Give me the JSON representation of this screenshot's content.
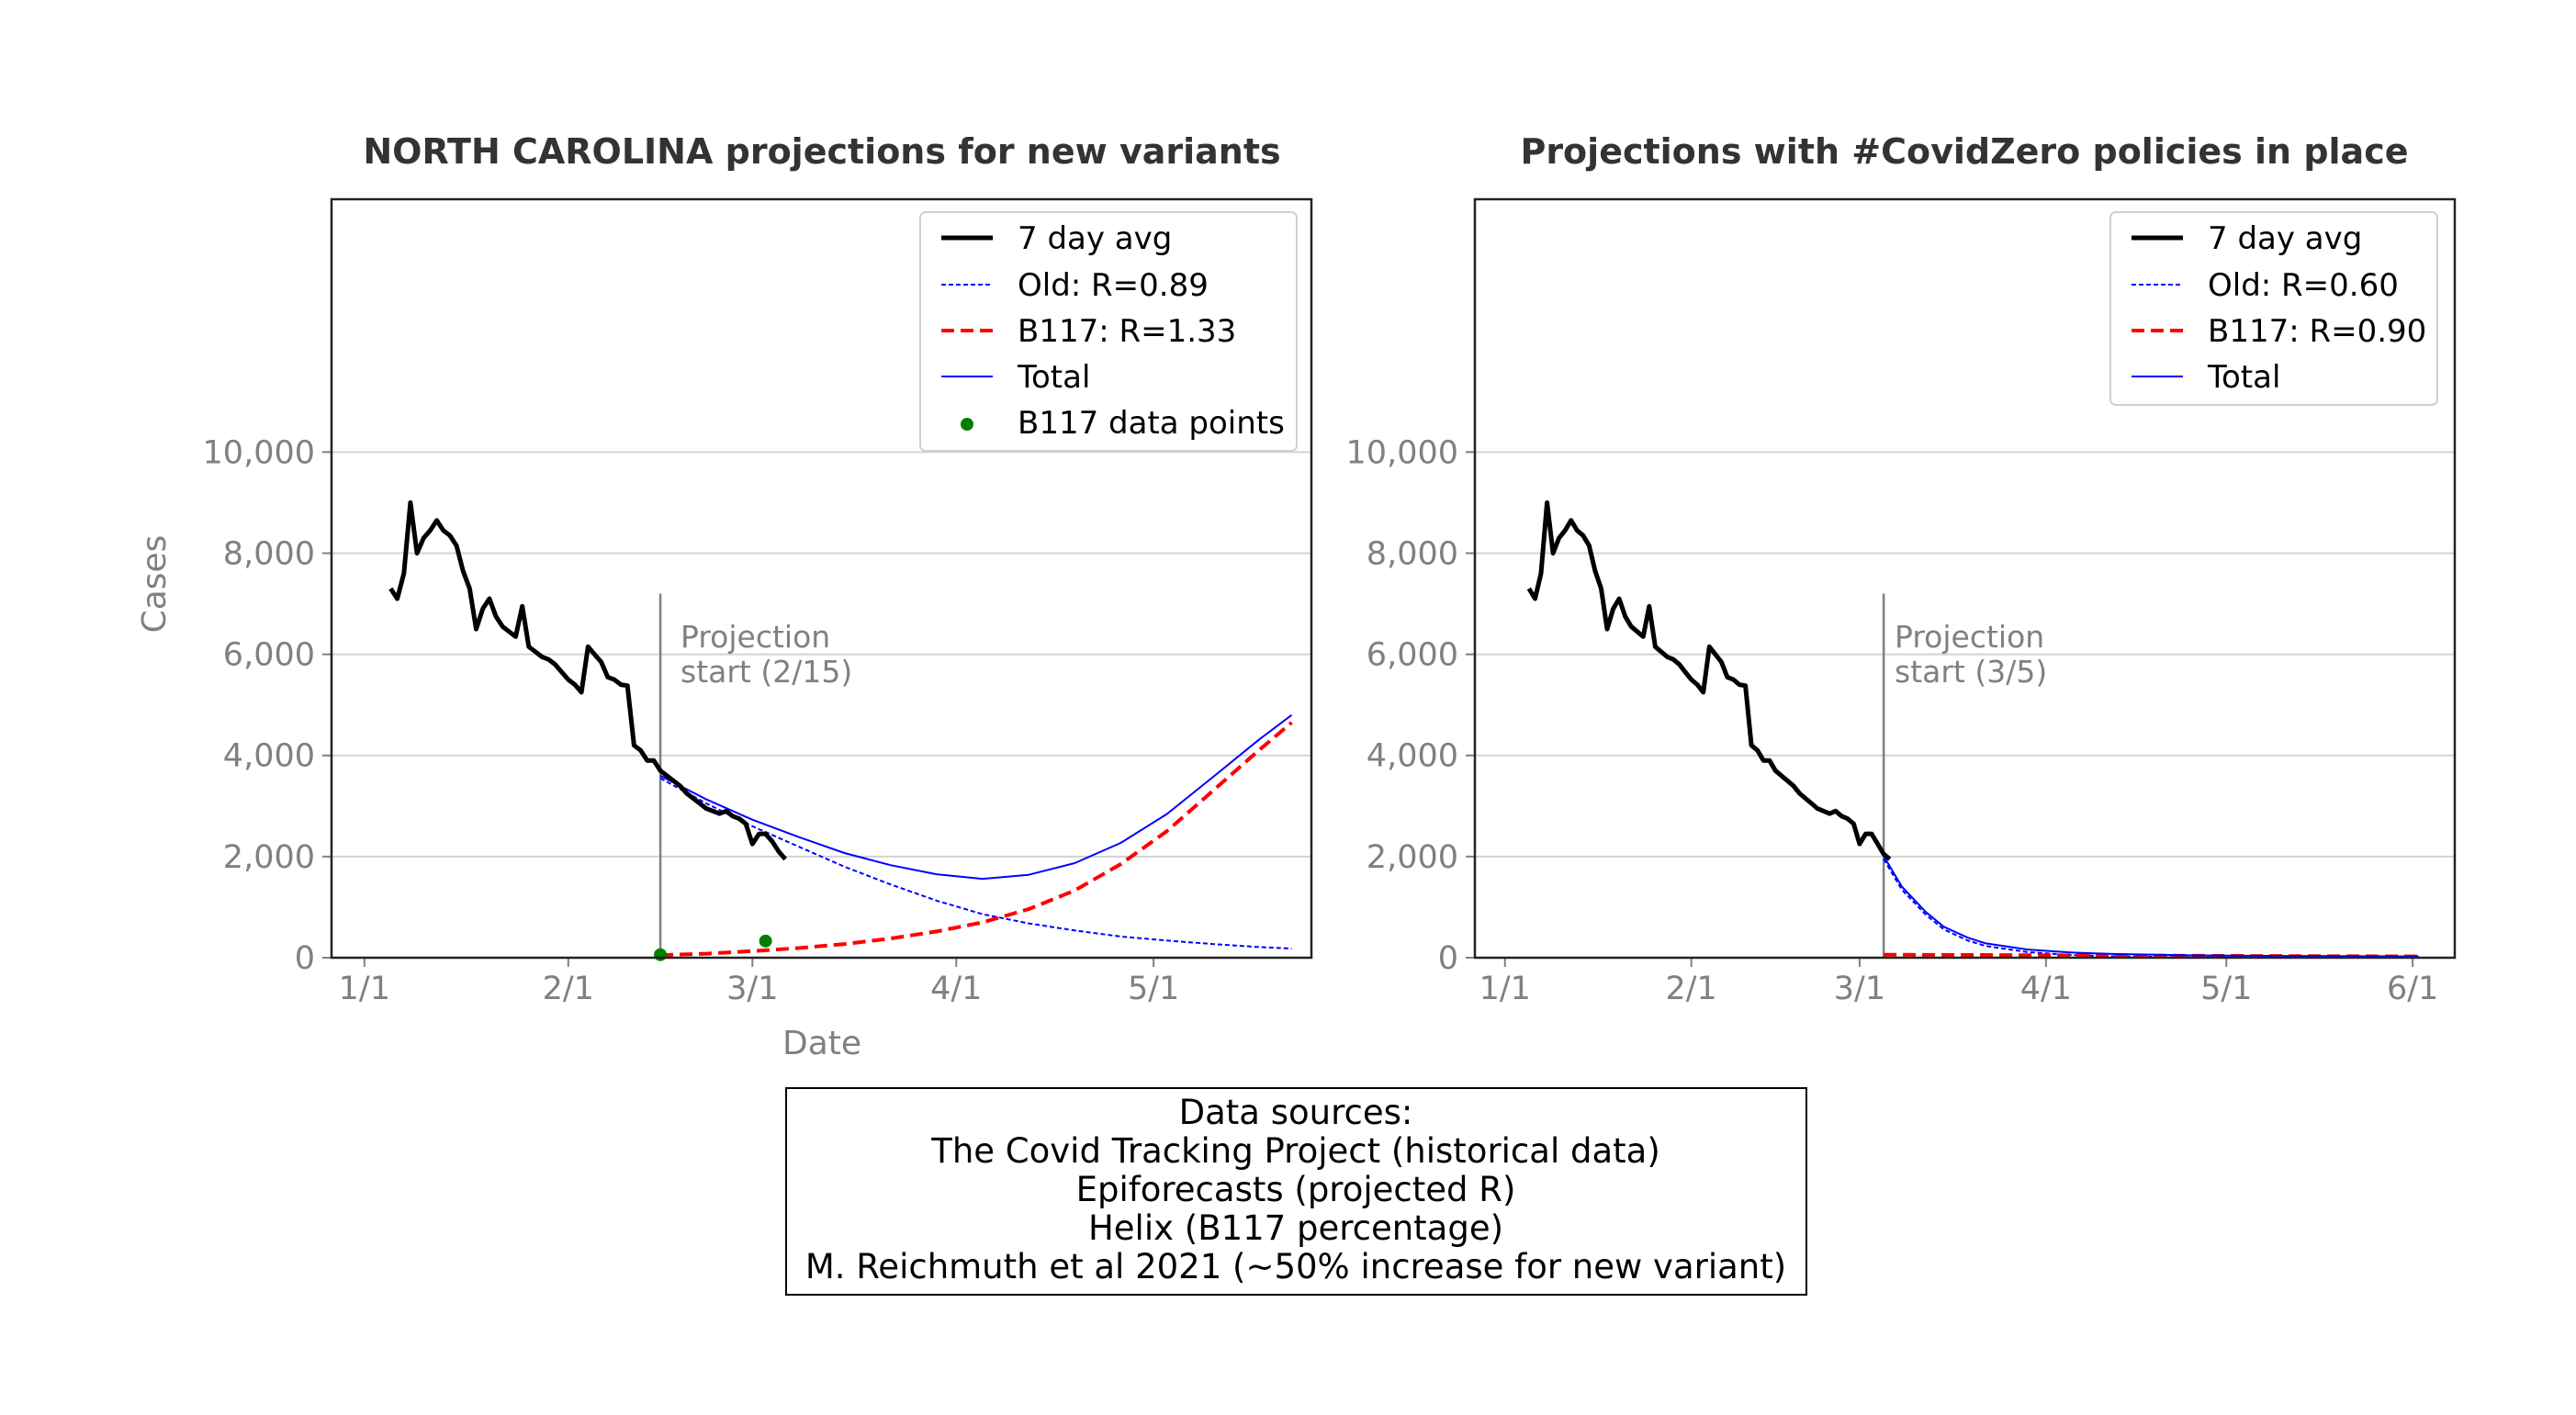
{
  "chart_data": [
    {
      "type": "line",
      "title": "NORTH CAROLINA projections for new variants",
      "xlabel": "Date",
      "ylabel": "Cases",
      "x_ticks": [
        "1/1",
        "2/1",
        "3/1",
        "4/1",
        "5/1"
      ],
      "y_ticks": [
        "0",
        "2,000",
        "4,000",
        "6,000",
        "8,000",
        "10,000"
      ],
      "xlim": [
        "2020-12-27",
        "2021-05-25"
      ],
      "ylim": [
        0,
        15000
      ],
      "grid": "horizontal",
      "legend_position": "top-right",
      "annotation": {
        "lines": [
          "Projection",
          "start (2/15)"
        ],
        "x": "2021-02-15"
      },
      "series": [
        {
          "name": "7 day avg",
          "style": "thick-solid",
          "color": "#000000",
          "points": [
            [
              "2021-01-05",
              7300
            ],
            [
              "2021-01-06",
              7100
            ],
            [
              "2021-01-07",
              7600
            ],
            [
              "2021-01-08",
              9000
            ],
            [
              "2021-01-09",
              8000
            ],
            [
              "2021-01-10",
              8300
            ],
            [
              "2021-01-11",
              8450
            ],
            [
              "2021-01-12",
              8650
            ],
            [
              "2021-01-13",
              8450
            ],
            [
              "2021-01-14",
              8350
            ],
            [
              "2021-01-15",
              8150
            ],
            [
              "2021-01-16",
              7650
            ],
            [
              "2021-01-17",
              7300
            ],
            [
              "2021-01-18",
              6500
            ],
            [
              "2021-01-19",
              6900
            ],
            [
              "2021-01-20",
              7100
            ],
            [
              "2021-01-21",
              6750
            ],
            [
              "2021-01-22",
              6550
            ],
            [
              "2021-01-23",
              6450
            ],
            [
              "2021-01-24",
              6350
            ],
            [
              "2021-01-25",
              6950
            ],
            [
              "2021-01-26",
              6150
            ],
            [
              "2021-01-27",
              6050
            ],
            [
              "2021-01-28",
              5950
            ],
            [
              "2021-01-29",
              5900
            ],
            [
              "2021-01-30",
              5800
            ],
            [
              "2021-01-31",
              5650
            ],
            [
              "2021-02-01",
              5500
            ],
            [
              "2021-02-02",
              5400
            ],
            [
              "2021-02-03",
              5250
            ],
            [
              "2021-02-04",
              6150
            ],
            [
              "2021-02-05",
              6000
            ],
            [
              "2021-02-06",
              5850
            ],
            [
              "2021-02-07",
              5550
            ],
            [
              "2021-02-08",
              5500
            ],
            [
              "2021-02-09",
              5400
            ],
            [
              "2021-02-10",
              5380
            ],
            [
              "2021-02-11",
              4200
            ],
            [
              "2021-02-12",
              4100
            ],
            [
              "2021-02-13",
              3900
            ],
            [
              "2021-02-14",
              3900
            ],
            [
              "2021-02-15",
              3700
            ],
            [
              "2021-02-16",
              3600
            ],
            [
              "2021-02-17",
              3500
            ],
            [
              "2021-02-18",
              3400
            ],
            [
              "2021-02-19",
              3250
            ],
            [
              "2021-02-20",
              3150
            ],
            [
              "2021-02-21",
              3050
            ],
            [
              "2021-02-22",
              2950
            ],
            [
              "2021-02-23",
              2900
            ],
            [
              "2021-02-24",
              2850
            ],
            [
              "2021-02-25",
              2900
            ],
            [
              "2021-02-26",
              2800
            ],
            [
              "2021-02-27",
              2750
            ],
            [
              "2021-02-28",
              2650
            ],
            [
              "2021-03-01",
              2250
            ],
            [
              "2021-03-02",
              2450
            ],
            [
              "2021-03-03",
              2450
            ],
            [
              "2021-03-04",
              2300
            ],
            [
              "2021-03-05",
              2100
            ],
            [
              "2021-03-06",
              1950
            ]
          ]
        },
        {
          "name": "Old: R=0.89",
          "style": "thin-dashed",
          "color": "#0000ff",
          "points": [
            [
              "2021-02-15",
              3550
            ],
            [
              "2021-02-22",
              3050
            ],
            [
              "2021-03-01",
              2600
            ],
            [
              "2021-03-08",
              2200
            ],
            [
              "2021-03-15",
              1800
            ],
            [
              "2021-03-22",
              1450
            ],
            [
              "2021-03-29",
              1130
            ],
            [
              "2021-04-05",
              860
            ],
            [
              "2021-04-12",
              680
            ],
            [
              "2021-04-19",
              540
            ],
            [
              "2021-04-26",
              420
            ],
            [
              "2021-05-03",
              340
            ],
            [
              "2021-05-10",
              270
            ],
            [
              "2021-05-17",
              210
            ],
            [
              "2021-05-22",
              180
            ]
          ]
        },
        {
          "name": "B117: R=1.33",
          "style": "thick-dashed",
          "color": "#ff0000",
          "points": [
            [
              "2021-02-15",
              50
            ],
            [
              "2021-02-22",
              80
            ],
            [
              "2021-03-01",
              130
            ],
            [
              "2021-03-08",
              190
            ],
            [
              "2021-03-15",
              270
            ],
            [
              "2021-03-22",
              380
            ],
            [
              "2021-03-29",
              520
            ],
            [
              "2021-04-05",
              700
            ],
            [
              "2021-04-12",
              960
            ],
            [
              "2021-04-19",
              1330
            ],
            [
              "2021-04-26",
              1850
            ],
            [
              "2021-05-03",
              2500
            ],
            [
              "2021-05-10",
              3300
            ],
            [
              "2021-05-17",
              4100
            ],
            [
              "2021-05-22",
              4650
            ]
          ]
        },
        {
          "name": "Total",
          "style": "thin-solid",
          "color": "#0000ff",
          "points": [
            [
              "2021-02-15",
              3600
            ],
            [
              "2021-02-22",
              3130
            ],
            [
              "2021-03-01",
              2730
            ],
            [
              "2021-03-08",
              2390
            ],
            [
              "2021-03-15",
              2070
            ],
            [
              "2021-03-22",
              1830
            ],
            [
              "2021-03-29",
              1650
            ],
            [
              "2021-04-05",
              1560
            ],
            [
              "2021-04-12",
              1640
            ],
            [
              "2021-04-19",
              1870
            ],
            [
              "2021-04-26",
              2270
            ],
            [
              "2021-05-03",
              2840
            ],
            [
              "2021-05-10",
              3570
            ],
            [
              "2021-05-17",
              4310
            ],
            [
              "2021-05-22",
              4800
            ]
          ]
        },
        {
          "name": "B117 data points",
          "style": "dots",
          "color": "#008000",
          "points": [
            [
              "2021-02-15",
              60
            ],
            [
              "2021-03-03",
              330
            ]
          ]
        }
      ]
    },
    {
      "type": "line",
      "title": "Projections with #CovidZero policies in place",
      "xlabel": "",
      "ylabel": "",
      "x_ticks": [
        "1/1",
        "2/1",
        "3/1",
        "4/1",
        "5/1",
        "6/1"
      ],
      "y_ticks": [
        "0",
        "2,000",
        "4,000",
        "6,000",
        "8,000",
        "10,000"
      ],
      "xlim": [
        "2020-12-27",
        "2021-06-08"
      ],
      "ylim": [
        0,
        15000
      ],
      "grid": "horizontal",
      "legend_position": "top-right",
      "annotation": {
        "lines": [
          "Projection",
          "start (3/5)"
        ],
        "x": "2021-03-05"
      },
      "series": [
        {
          "name": "7 day avg",
          "style": "thick-solid",
          "color": "#000000",
          "points": [
            [
              "2021-01-05",
              7300
            ],
            [
              "2021-01-06",
              7100
            ],
            [
              "2021-01-07",
              7600
            ],
            [
              "2021-01-08",
              9000
            ],
            [
              "2021-01-09",
              8000
            ],
            [
              "2021-01-10",
              8300
            ],
            [
              "2021-01-11",
              8450
            ],
            [
              "2021-01-12",
              8650
            ],
            [
              "2021-01-13",
              8450
            ],
            [
              "2021-01-14",
              8350
            ],
            [
              "2021-01-15",
              8150
            ],
            [
              "2021-01-16",
              7650
            ],
            [
              "2021-01-17",
              7300
            ],
            [
              "2021-01-18",
              6500
            ],
            [
              "2021-01-19",
              6900
            ],
            [
              "2021-01-20",
              7100
            ],
            [
              "2021-01-21",
              6750
            ],
            [
              "2021-01-22",
              6550
            ],
            [
              "2021-01-23",
              6450
            ],
            [
              "2021-01-24",
              6350
            ],
            [
              "2021-01-25",
              6950
            ],
            [
              "2021-01-26",
              6150
            ],
            [
              "2021-01-27",
              6050
            ],
            [
              "2021-01-28",
              5950
            ],
            [
              "2021-01-29",
              5900
            ],
            [
              "2021-01-30",
              5800
            ],
            [
              "2021-01-31",
              5650
            ],
            [
              "2021-02-01",
              5500
            ],
            [
              "2021-02-02",
              5400
            ],
            [
              "2021-02-03",
              5250
            ],
            [
              "2021-02-04",
              6150
            ],
            [
              "2021-02-05",
              6000
            ],
            [
              "2021-02-06",
              5850
            ],
            [
              "2021-02-07",
              5550
            ],
            [
              "2021-02-08",
              5500
            ],
            [
              "2021-02-09",
              5400
            ],
            [
              "2021-02-10",
              5380
            ],
            [
              "2021-02-11",
              4200
            ],
            [
              "2021-02-12",
              4100
            ],
            [
              "2021-02-13",
              3900
            ],
            [
              "2021-02-14",
              3900
            ],
            [
              "2021-02-15",
              3700
            ],
            [
              "2021-02-16",
              3600
            ],
            [
              "2021-02-17",
              3500
            ],
            [
              "2021-02-18",
              3400
            ],
            [
              "2021-02-19",
              3250
            ],
            [
              "2021-02-20",
              3150
            ],
            [
              "2021-02-21",
              3050
            ],
            [
              "2021-02-22",
              2950
            ],
            [
              "2021-02-23",
              2900
            ],
            [
              "2021-02-24",
              2850
            ],
            [
              "2021-02-25",
              2900
            ],
            [
              "2021-02-26",
              2800
            ],
            [
              "2021-02-27",
              2750
            ],
            [
              "2021-02-28",
              2650
            ],
            [
              "2021-03-01",
              2250
            ],
            [
              "2021-03-02",
              2450
            ],
            [
              "2021-03-03",
              2450
            ],
            [
              "2021-03-04",
              2250
            ],
            [
              "2021-03-05",
              2050
            ],
            [
              "2021-03-06",
              1950
            ]
          ]
        },
        {
          "name": "Old: R=0.60",
          "style": "thin-dashed",
          "color": "#0000ff",
          "points": [
            [
              "2021-03-05",
              1950
            ],
            [
              "2021-03-08",
              1350
            ],
            [
              "2021-03-12",
              850
            ],
            [
              "2021-03-15",
              560
            ],
            [
              "2021-03-19",
              340
            ],
            [
              "2021-03-22",
              230
            ],
            [
              "2021-03-29",
              110
            ],
            [
              "2021-04-05",
              55
            ],
            [
              "2021-04-12",
              28
            ],
            [
              "2021-04-26",
              8
            ],
            [
              "2021-05-10",
              3
            ],
            [
              "2021-06-02",
              1
            ]
          ]
        },
        {
          "name": "B117: R=0.90",
          "style": "thick-dashed",
          "color": "#ff0000",
          "points": [
            [
              "2021-03-05",
              60
            ],
            [
              "2021-03-19",
              55
            ],
            [
              "2021-04-05",
              48
            ],
            [
              "2021-04-26",
              38
            ],
            [
              "2021-05-17",
              30
            ],
            [
              "2021-06-02",
              25
            ]
          ]
        },
        {
          "name": "Total",
          "style": "thin-solid",
          "color": "#0000ff",
          "points": [
            [
              "2021-03-05",
              2010
            ],
            [
              "2021-03-08",
              1410
            ],
            [
              "2021-03-12",
              905
            ],
            [
              "2021-03-15",
              612
            ],
            [
              "2021-03-19",
              395
            ],
            [
              "2021-03-22",
              283
            ],
            [
              "2021-03-29",
              162
            ],
            [
              "2021-04-05",
              103
            ],
            [
              "2021-04-12",
              74
            ],
            [
              "2021-04-26",
              46
            ],
            [
              "2021-05-10",
              35
            ],
            [
              "2021-06-02",
              26
            ]
          ]
        }
      ]
    }
  ],
  "sources_box": {
    "lines": [
      "Data sources:",
      "The Covid Tracking Project (historical data)",
      "Epiforecasts (projected R)",
      "Helix (B117 percentage)",
      "M. Reichmuth et al 2021 (~50% increase for new variant)"
    ]
  }
}
